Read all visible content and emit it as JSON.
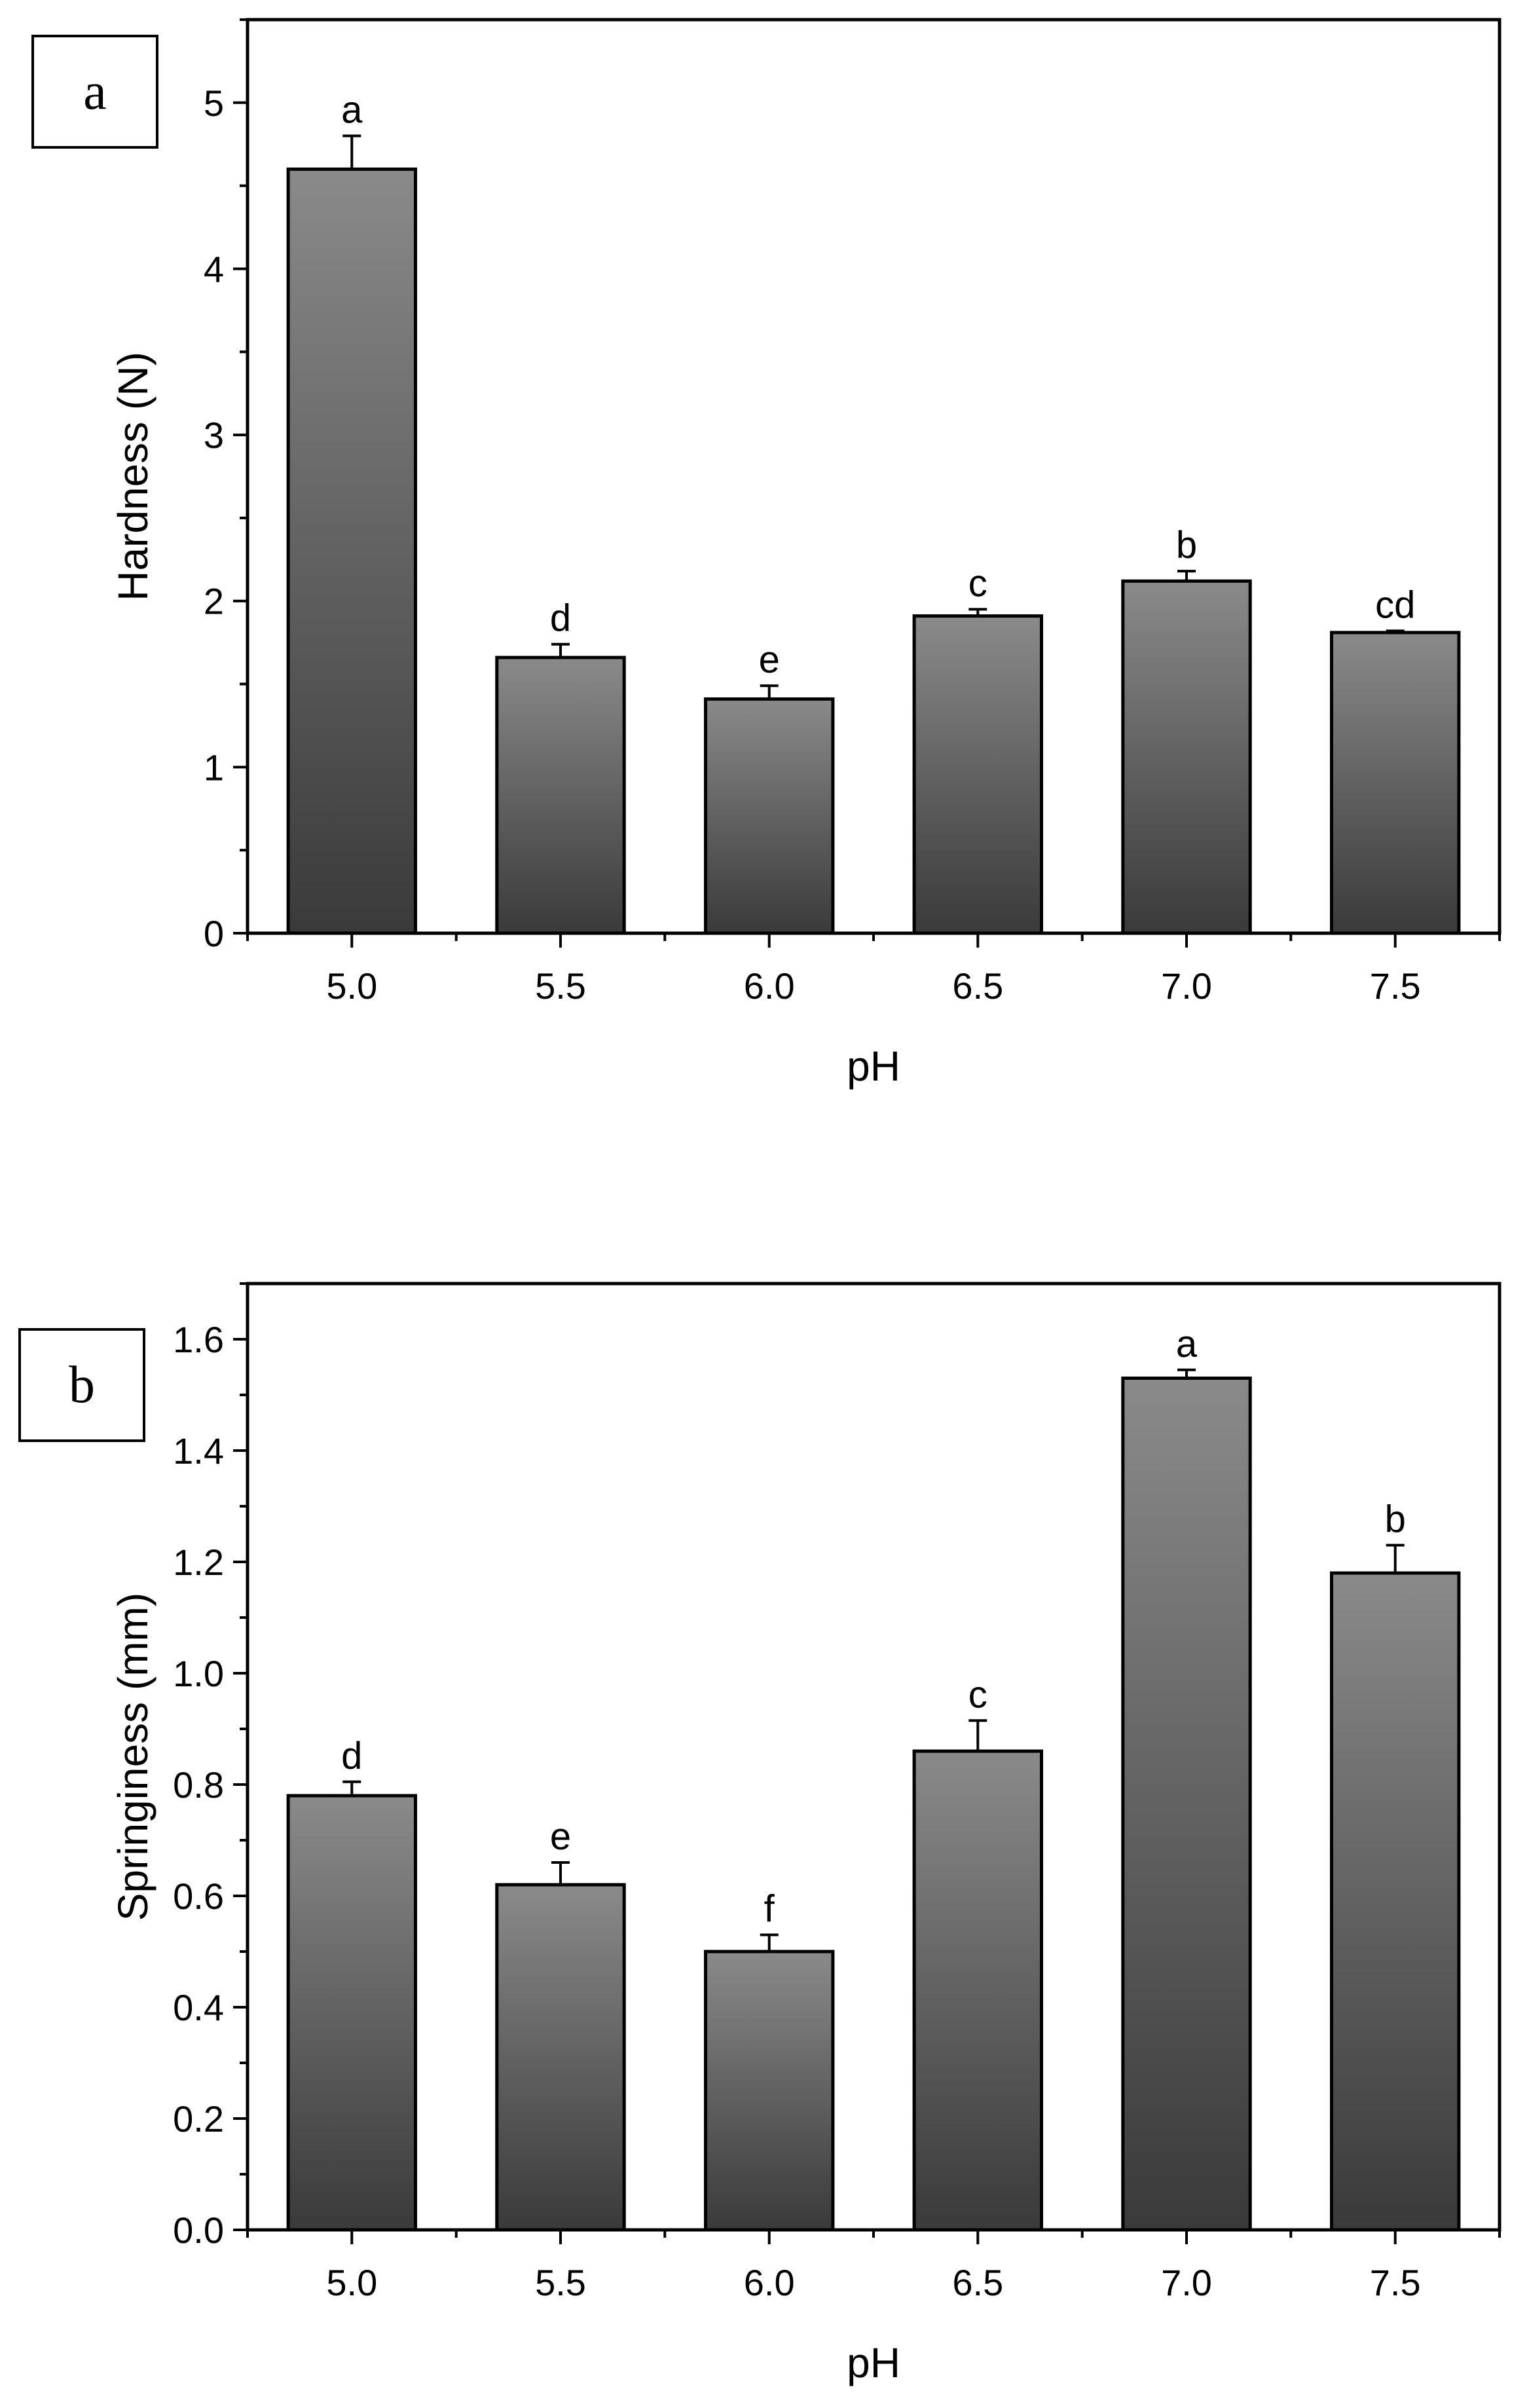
{
  "colors": {
    "bar_top": "#8a8a8a",
    "bar_bottom": "#3a3a3a",
    "axis": "#000000"
  },
  "chart_data": [
    {
      "type": "bar",
      "panel_label": "a",
      "categories": [
        "5.0",
        "5.5",
        "6.0",
        "6.5",
        "7.0",
        "7.5"
      ],
      "values": [
        4.6,
        1.66,
        1.41,
        1.91,
        2.12,
        1.81
      ],
      "errors": [
        0.2,
        0.08,
        0.08,
        0.04,
        0.06,
        0.01
      ],
      "significance": [
        "a",
        "d",
        "e",
        "c",
        "b",
        "cd"
      ],
      "xlabel": "pH",
      "ylabel": "Hardness (N)",
      "ylim": [
        0,
        5.5
      ],
      "y_major_ticks": [
        0,
        1,
        2,
        3,
        4,
        5
      ],
      "y_minor_step": 0.5,
      "y_tick_labels": [
        "0",
        "1",
        "2",
        "3",
        "4",
        "5"
      ]
    },
    {
      "type": "bar",
      "panel_label": "b",
      "categories": [
        "5.0",
        "5.5",
        "6.0",
        "6.5",
        "7.0",
        "7.5"
      ],
      "values": [
        0.78,
        0.62,
        0.5,
        0.86,
        1.53,
        1.18
      ],
      "errors": [
        0.025,
        0.04,
        0.03,
        0.055,
        0.015,
        0.05
      ],
      "significance": [
        "d",
        "e",
        "f",
        "c",
        "a",
        "b"
      ],
      "xlabel": "pH",
      "ylabel": "Springiness (mm)",
      "ylim": [
        0,
        1.7
      ],
      "y_major_ticks": [
        0,
        0.2,
        0.4,
        0.6,
        0.8,
        1.0,
        1.2,
        1.4,
        1.6
      ],
      "y_minor_step": 0.1,
      "y_tick_labels": [
        "0.0",
        "0.2",
        "0.4",
        "0.6",
        "0.8",
        "1.0",
        "1.2",
        "1.4",
        "1.6"
      ]
    }
  ]
}
